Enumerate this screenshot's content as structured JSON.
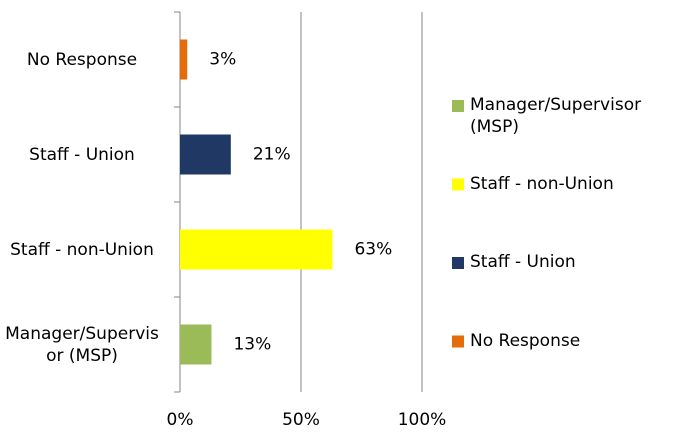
{
  "chart_data": {
    "type": "barh",
    "categories": [
      "Manager/Supervisor (MSP)",
      "Staff - non-Union",
      "Staff - Union",
      "No Response"
    ],
    "values": [
      13,
      63,
      21,
      3
    ],
    "value_labels": [
      "13%",
      "63%",
      "21%",
      "3%"
    ],
    "colors": [
      "#9bbb59",
      "#ffff00",
      "#1f3864",
      "#e46c0a"
    ],
    "xlim": [
      0,
      100
    ],
    "xticks": [
      {
        "value": 0,
        "label": "0%"
      },
      {
        "value": 50,
        "label": "50%"
      },
      {
        "value": 100,
        "label": "100%"
      }
    ],
    "grid": true,
    "legend": "right"
  }
}
